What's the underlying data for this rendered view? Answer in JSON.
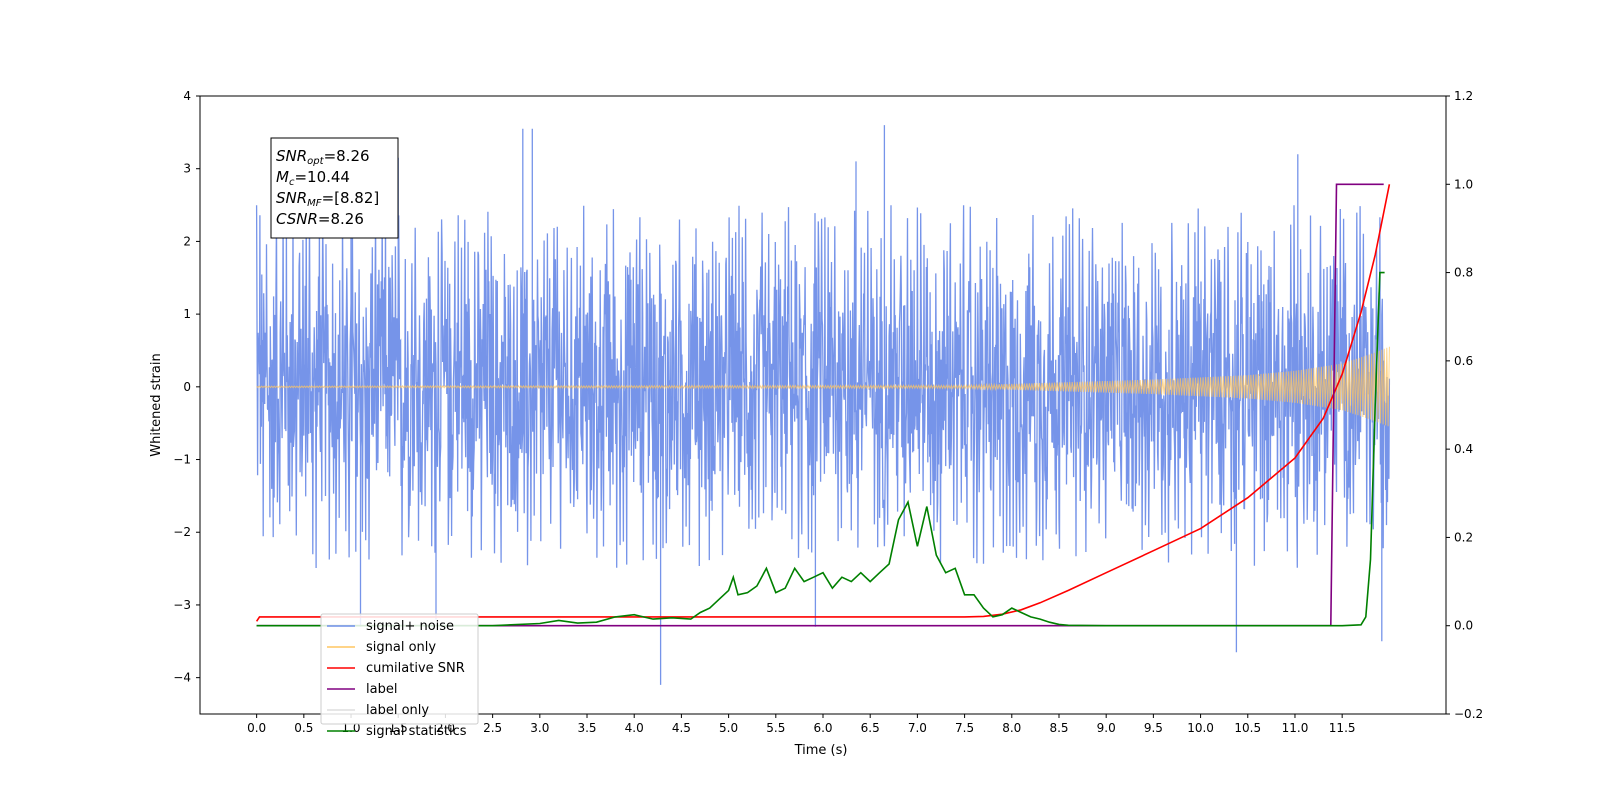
{
  "chart_data": {
    "type": "line",
    "xlabel": "Time (s)",
    "ylabel": "Whitened strain",
    "xlim": [
      -0.6,
      12.6
    ],
    "ylim_left": [
      -4.5,
      4
    ],
    "ylim_right": [
      -0.2,
      1.2
    ],
    "x_ticks": [
      "0.0",
      "0.5",
      "1.0",
      "1.5",
      "2.0",
      "2.5",
      "3.0",
      "3.5",
      "4.0",
      "4.5",
      "5.0",
      "5.5",
      "6.0",
      "6.5",
      "7.0",
      "7.5",
      "8.0",
      "8.5",
      "9.0",
      "9.5",
      "10.0",
      "10.5",
      "11.0",
      "11.5"
    ],
    "y_left_ticks": [
      "4",
      "3",
      "2",
      "1",
      "0",
      "−1",
      "−2",
      "−3",
      "−4"
    ],
    "y_right_ticks": [
      "1.2",
      "1.0",
      "0.8",
      "0.6",
      "0.4",
      "0.2",
      "0.0",
      "−0.2"
    ],
    "annotation": {
      "lines": [
        {
          "sym": "SNR",
          "sub": "opt",
          "rest": "=8.26"
        },
        {
          "sym": "M",
          "sub": "c",
          "rest": "=10.44"
        },
        {
          "sym": "SNR",
          "sub": "MF",
          "rest": "=[8.82]"
        },
        {
          "sym": "CSNR",
          "sub": "",
          "rest": "=8.26"
        }
      ]
    },
    "legend": {
      "placement": "lower-left",
      "entries": [
        {
          "label": "signal+ noise",
          "color": "#6f8ee8"
        },
        {
          "label": "signal only",
          "color": "#ffc561"
        },
        {
          "label": "cumilative SNR",
          "color": "#ff0000"
        },
        {
          "label": "label",
          "color": "#800080"
        },
        {
          "label": "label only",
          "color": "#dddddd"
        },
        {
          "label": "signal statistics",
          "color": "#008000"
        }
      ]
    },
    "series": [
      {
        "name": "signal+ noise",
        "axis": "left",
        "color": "#6f8ee8",
        "envelope": {
          "x": [
            0,
            12
          ],
          "upper": 2.0,
          "lower": -2.0
        },
        "spikes": [
          [
            1.0,
            2.7
          ],
          [
            1.1,
            -3.3
          ],
          [
            1.5,
            3.15
          ],
          [
            1.9,
            -3.2
          ],
          [
            2.82,
            3.55
          ],
          [
            2.92,
            3.55
          ],
          [
            4.28,
            -4.1
          ],
          [
            5.92,
            -3.3
          ],
          [
            6.35,
            3.1
          ],
          [
            6.65,
            3.6
          ],
          [
            10.38,
            -3.65
          ],
          [
            11.03,
            3.2
          ],
          [
            11.92,
            -3.5
          ]
        ]
      },
      {
        "name": "signal only",
        "axis": "left",
        "color": "#ffc561",
        "envelope": {
          "x": [
            0,
            7.5,
            8.5,
            9.5,
            10.5,
            11.0,
            11.5,
            11.8,
            12.0
          ],
          "amp": [
            0.01,
            0.02,
            0.06,
            0.1,
            0.16,
            0.22,
            0.32,
            0.45,
            0.55
          ]
        }
      },
      {
        "name": "cumilative SNR",
        "axis": "right",
        "color": "#ff0000",
        "x": [
          0,
          0.03,
          7.5,
          7.7,
          7.9,
          8.1,
          8.3,
          8.6,
          9.0,
          9.5,
          10.0,
          10.5,
          11.0,
          11.3,
          11.5,
          11.7,
          11.85,
          12.0
        ],
        "y": [
          0.01,
          0.02,
          0.02,
          0.021,
          0.026,
          0.036,
          0.052,
          0.08,
          0.12,
          0.17,
          0.22,
          0.29,
          0.38,
          0.47,
          0.57,
          0.71,
          0.84,
          1.0
        ]
      },
      {
        "name": "label",
        "axis": "right",
        "color": "#800080",
        "x": [
          0,
          11.38,
          11.44,
          11.94
        ],
        "y": [
          0,
          0,
          1.0,
          1.0
        ]
      },
      {
        "name": "signal statistics",
        "axis": "right",
        "color": "#008000",
        "x": [
          0,
          2.5,
          3.0,
          3.2,
          3.4,
          3.6,
          3.8,
          4.0,
          4.2,
          4.4,
          4.6,
          4.7,
          4.8,
          4.9,
          5.0,
          5.05,
          5.1,
          5.2,
          5.3,
          5.4,
          5.5,
          5.6,
          5.7,
          5.8,
          5.9,
          6.0,
          6.1,
          6.2,
          6.3,
          6.4,
          6.5,
          6.6,
          6.7,
          6.8,
          6.9,
          7.0,
          7.1,
          7.2,
          7.3,
          7.4,
          7.5,
          7.6,
          7.7,
          7.8,
          7.9,
          8.0,
          8.1,
          8.2,
          8.3,
          8.4,
          8.5,
          8.6,
          9.0,
          9.5,
          10.0,
          10.5,
          11.0,
          11.5,
          11.7,
          11.75,
          11.8,
          11.85,
          11.9,
          11.95
        ],
        "y": [
          0,
          0,
          0.005,
          0.012,
          0.006,
          0.008,
          0.02,
          0.025,
          0.015,
          0.018,
          0.015,
          0.03,
          0.04,
          0.06,
          0.08,
          0.11,
          0.07,
          0.075,
          0.09,
          0.13,
          0.075,
          0.085,
          0.13,
          0.1,
          0.11,
          0.12,
          0.085,
          0.11,
          0.1,
          0.12,
          0.1,
          0.12,
          0.14,
          0.24,
          0.28,
          0.18,
          0.27,
          0.16,
          0.12,
          0.13,
          0.07,
          0.07,
          0.04,
          0.02,
          0.025,
          0.04,
          0.03,
          0.02,
          0.015,
          0.008,
          0.003,
          0.001,
          0,
          0,
          0,
          0,
          0,
          0,
          0.002,
          0.02,
          0.15,
          0.5,
          0.8,
          0.8
        ]
      }
    ]
  }
}
